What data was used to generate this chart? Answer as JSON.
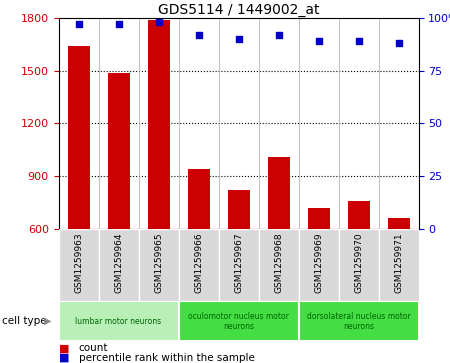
{
  "title": "GDS5114 / 1449002_at",
  "samples": [
    "GSM1259963",
    "GSM1259964",
    "GSM1259965",
    "GSM1259966",
    "GSM1259967",
    "GSM1259968",
    "GSM1259969",
    "GSM1259970",
    "GSM1259971"
  ],
  "counts": [
    1640,
    1490,
    1790,
    940,
    820,
    1010,
    720,
    760,
    660
  ],
  "percentiles": [
    97,
    97,
    98,
    92,
    90,
    92,
    89,
    89,
    88
  ],
  "ylim_left": [
    600,
    1800
  ],
  "ylim_right": [
    0,
    100
  ],
  "yticks_left": [
    600,
    900,
    1200,
    1500,
    1800
  ],
  "yticks_right": [
    0,
    25,
    50,
    75,
    100
  ],
  "bar_color": "#cc0000",
  "dot_color": "#0000cc",
  "cell_types": [
    {
      "label": "lumbar motor neurons",
      "start": 0,
      "end": 3,
      "color": "#b8f0b8"
    },
    {
      "label": "oculomotor nucleus motor\nneurons",
      "start": 3,
      "end": 6,
      "color": "#44dd44"
    },
    {
      "label": "dorsolateral nucleus motor\nneurons",
      "start": 6,
      "end": 9,
      "color": "#44dd44"
    }
  ],
  "legend_count_label": "count",
  "legend_percentile_label": "percentile rank within the sample",
  "cell_type_label": "cell type",
  "bar_width": 0.55,
  "sample_box_color": "#d8d8d8",
  "plot_bg_color": "#ffffff",
  "figure_bg_color": "#ffffff"
}
